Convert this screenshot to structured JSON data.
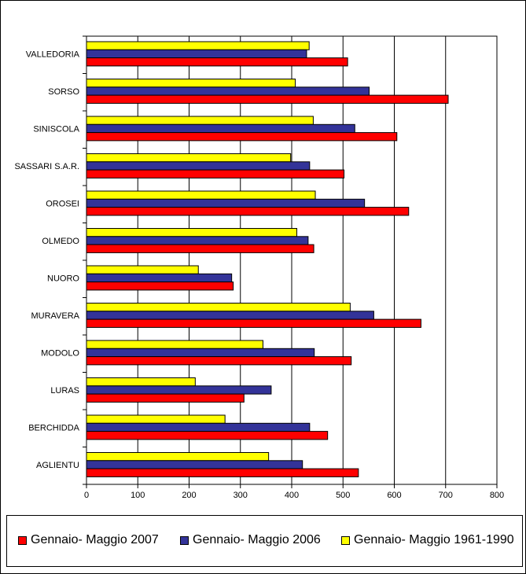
{
  "chart_data": {
    "type": "bar",
    "orientation": "horizontal",
    "categories": [
      "AGLIENTU",
      "BERCHIDDA",
      "LURAS",
      "MODOLO",
      "MURAVERA",
      "NUORO",
      "OLMEDO",
      "OROSEI",
      "SASSARI S.A.R.",
      "SINISCOLA",
      "SORSO",
      "VALLEDORIA"
    ],
    "series": [
      {
        "name": "Gennaio- Maggio 2007",
        "color": "#ff0000",
        "values": [
          530,
          470,
          307,
          516,
          652,
          286,
          443,
          628,
          502,
          605,
          705,
          509
        ]
      },
      {
        "name": "Gennaio- Maggio 2006",
        "color": "#333399",
        "values": [
          421,
          435,
          360,
          444,
          560,
          283,
          432,
          542,
          435,
          523,
          551,
          429
        ]
      },
      {
        "name": "Gennaio- Maggio 1961-1990",
        "color": "#ffff00",
        "values": [
          355,
          270,
          212,
          344,
          514,
          218,
          410,
          446,
          398,
          442,
          407,
          434
        ]
      }
    ],
    "xlim": [
      0,
      800
    ],
    "xticks": [
      "0",
      "100",
      "200",
      "300",
      "400",
      "500",
      "600",
      "700",
      "800"
    ],
    "grid": "vertical",
    "legend_position": "bottom"
  }
}
